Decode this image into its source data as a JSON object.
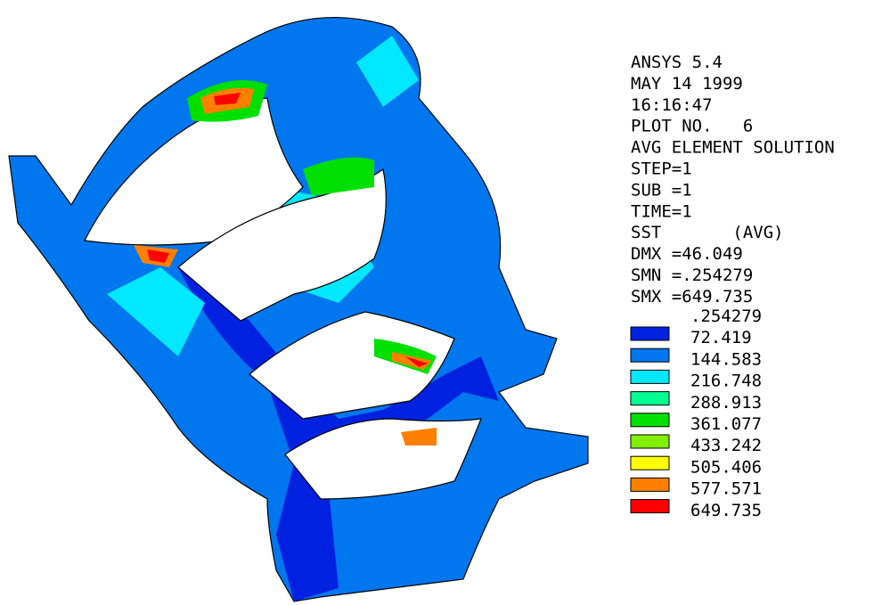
{
  "header": {
    "lines": [
      "ANSYS 5.4",
      "MAY 14 1999",
      "16:16:47",
      "PLOT NO.   6",
      "AVG ELEMENT SOLUTION",
      "STEP=1",
      "SUB =1",
      "TIME=1",
      "SST       (AVG)",
      "DMX =46.049",
      "SMN =.254279",
      "SMX =649.735"
    ]
  },
  "legend": {
    "colors": [
      "#0022e0",
      "#0077ee",
      "#00e8ff",
      "#00ff90",
      "#00e000",
      "#80f000",
      "#ffff00",
      "#ff8000",
      "#ff0000"
    ],
    "levels": [
      ".254279",
      "72.419",
      "144.583",
      "216.748",
      "288.913",
      "361.077",
      "433.242",
      "505.406",
      "577.571",
      "649.735"
    ]
  }
}
